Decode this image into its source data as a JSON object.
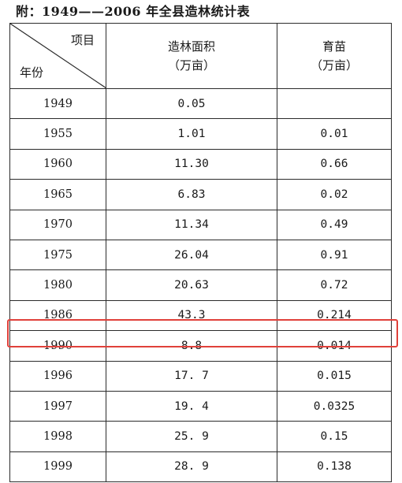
{
  "title": "附：1949——2006 年全县造林统计表",
  "header": {
    "corner_item": "项目",
    "corner_year": "年份",
    "forest_line1": "造林面积",
    "forest_line2": "（万亩）",
    "nursery_line1": "育苗",
    "nursery_line2": "（万亩）"
  },
  "rows": [
    {
      "year": "1949",
      "forest": "0.05",
      "nursery": ""
    },
    {
      "year": "1955",
      "forest": "1.01",
      "nursery": "0.01"
    },
    {
      "year": "1960",
      "forest": "11.30",
      "nursery": "0.66"
    },
    {
      "year": "1965",
      "forest": "6.83",
      "nursery": "0.02"
    },
    {
      "year": "1970",
      "forest": "11.34",
      "nursery": "0.49"
    },
    {
      "year": "1975",
      "forest": "26.04",
      "nursery": "0.91"
    },
    {
      "year": "1980",
      "forest": "20.63",
      "nursery": "0.72"
    },
    {
      "year": "1986",
      "forest": "43.3",
      "nursery": "0.214"
    },
    {
      "year": "1990",
      "forest": "8.8",
      "nursery": "0.014"
    },
    {
      "year": "1996",
      "forest": "17. 7",
      "nursery": "0.015"
    },
    {
      "year": "1997",
      "forest": "19. 4",
      "nursery": "0.0325"
    },
    {
      "year": "1998",
      "forest": "25. 9",
      "nursery": "0.15"
    },
    {
      "year": "1999",
      "forest": "28. 9",
      "nursery": "0.138"
    }
  ],
  "highlight_color": "#e0403a"
}
